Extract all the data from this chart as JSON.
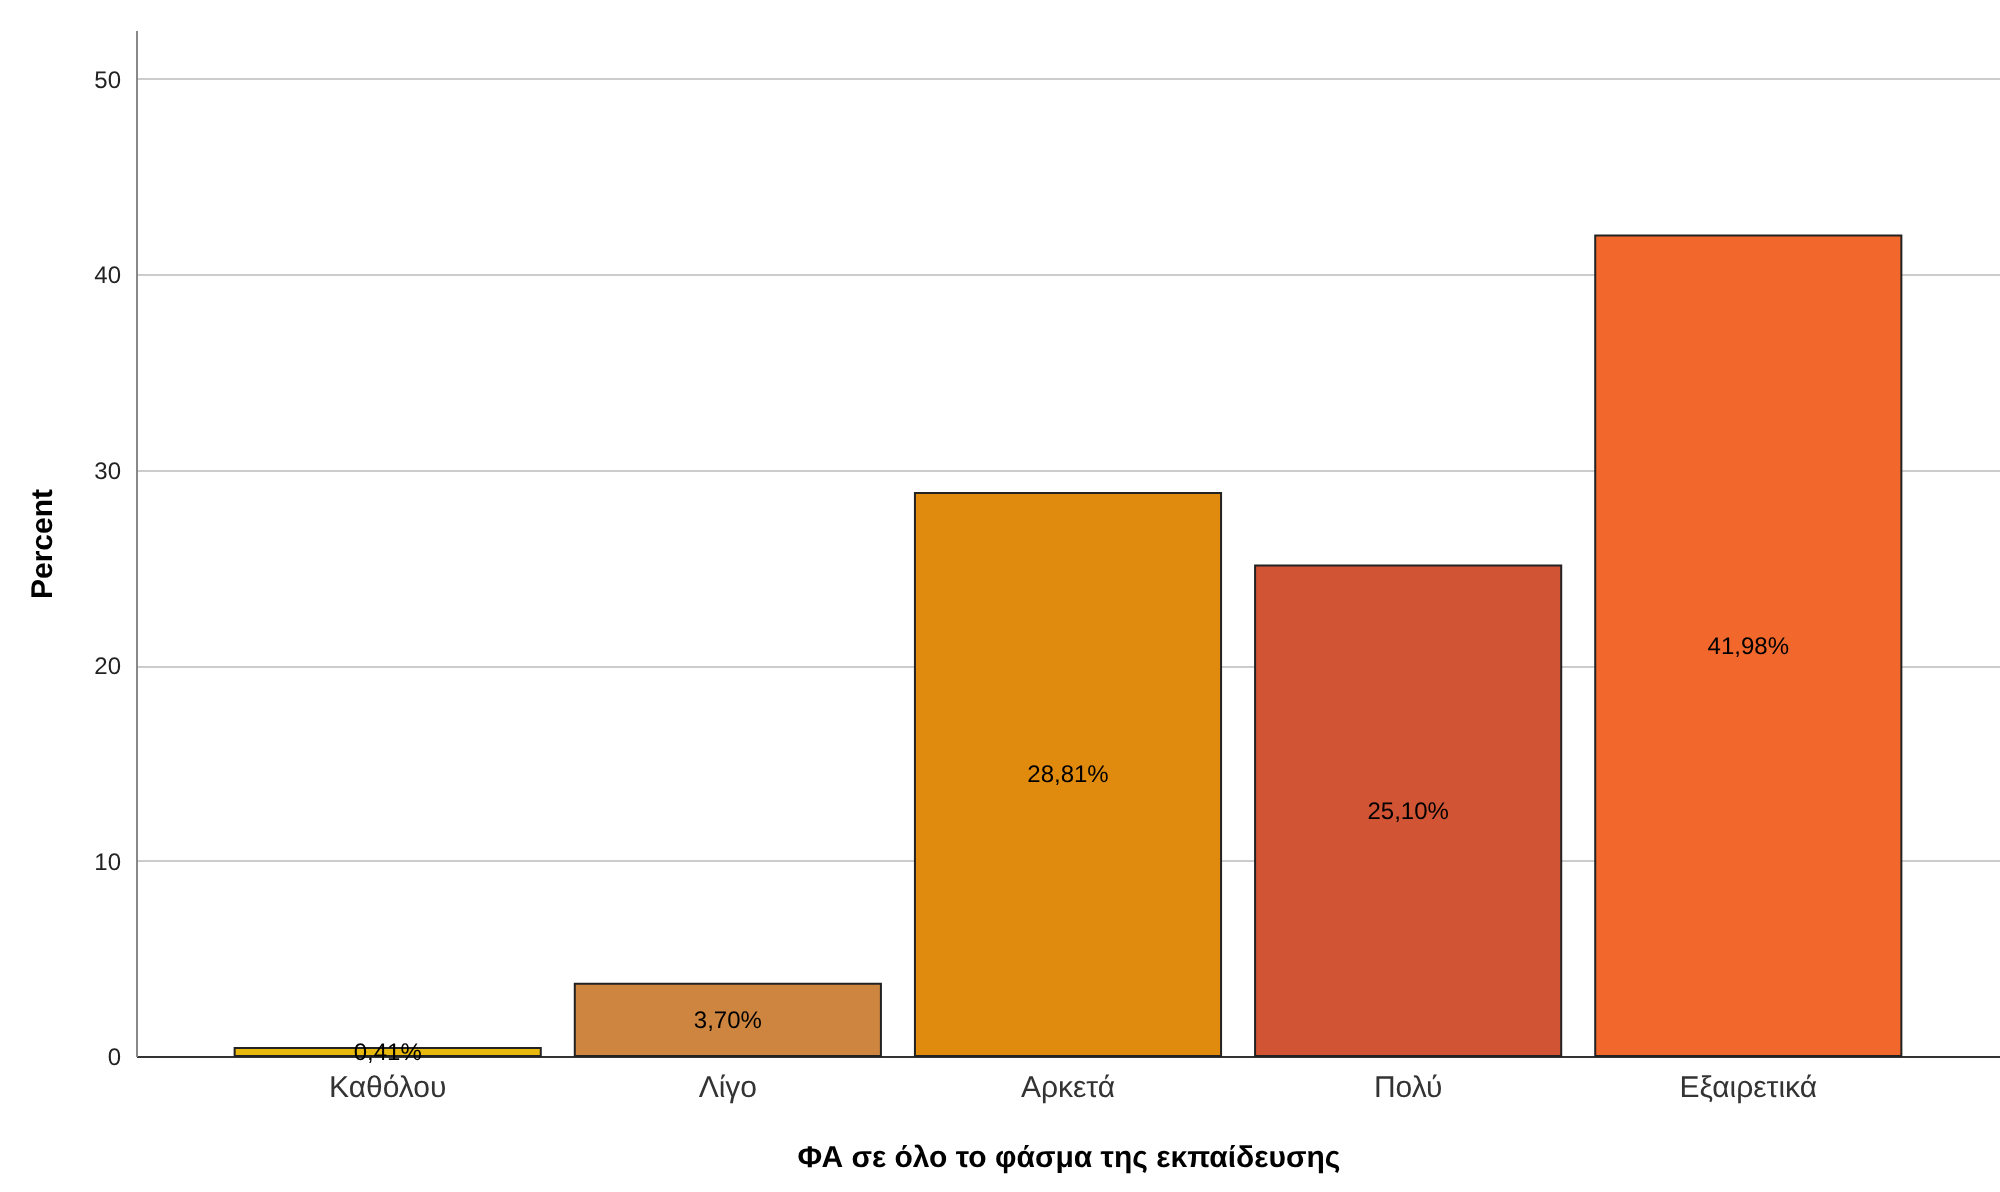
{
  "chart_data": {
    "type": "bar",
    "xlabel": "ΦΑ σε όλο το φάσμα της εκπαίδευσης",
    "ylabel": "Percent",
    "categories": [
      "Καθόλου",
      "Λίγο",
      "Αρκετά",
      "Πολύ",
      "Εξαιρετικά"
    ],
    "values": [
      0.41,
      3.7,
      28.81,
      25.1,
      41.98
    ],
    "value_labels": [
      "0,41%",
      "3,70%",
      "28,81%",
      "25,10%",
      "41,98%"
    ],
    "colors": [
      "#e8b80c",
      "#cd853f",
      "#e08a0e",
      "#d15434",
      "#f2682c"
    ],
    "ylim": [
      0,
      52.5
    ],
    "yticks": [
      0,
      10,
      20,
      30,
      40,
      50
    ],
    "grid": "y"
  }
}
